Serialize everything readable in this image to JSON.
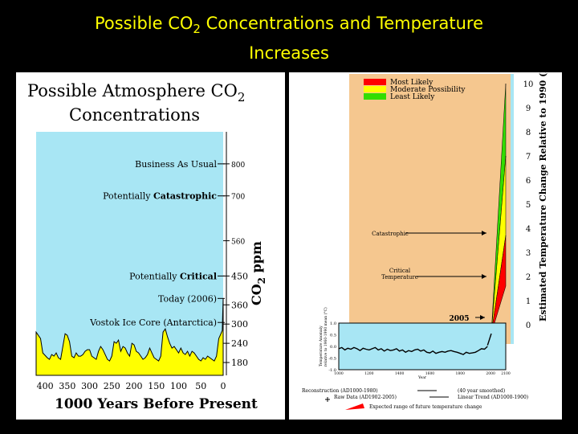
{
  "slide": {
    "title_part1": "Possible CO",
    "title_subscript": "2",
    "title_part2": " Concentrations and Temperature",
    "title_line2": "Increases"
  },
  "colors": {
    "background": "#000000",
    "title": "#ffff00",
    "sky": "#a8e6f4",
    "ice_core": "#ffff00",
    "warm_panel": "#f5c78f",
    "most_likely": "#ff0000",
    "moderate": "#ffff00",
    "least_likely": "#33dd00"
  },
  "chart_data": [
    {
      "type": "area",
      "title_line1": "Possible Atmosphere CO",
      "title_sub": "2",
      "title_line2": "Concentrations",
      "xlabel": "1000 Years Before Present",
      "ylabel": "CO2 ppm",
      "ylabel_main": "CO",
      "ylabel_sub": "2",
      "ylabel_unit": " ppm",
      "x_ticks": [
        "400",
        "350",
        "300",
        "250",
        "200",
        "150",
        "100",
        "50",
        "0"
      ],
      "y_ticks": [
        "800",
        "700",
        "560",
        "450",
        "360",
        "300",
        "240",
        "180"
      ],
      "annotations": [
        {
          "text": "Business As Usual",
          "level": 800
        },
        {
          "prefix": "Potentially ",
          "emph": "Catastrophic",
          "level": 700
        },
        {
          "prefix": "Potentially ",
          "emph": "Critical",
          "level": 450
        },
        {
          "text": "Today (2006)",
          "level": 380
        },
        {
          "text": "Vostok Ice Core (Antarctica)",
          "level": 305
        }
      ],
      "series": [
        {
          "name": "Vostok Ice Core (Antarctica)",
          "x": [
            420,
            410,
            405,
            395,
            390,
            385,
            380,
            375,
            370,
            365,
            360,
            355,
            350,
            345,
            340,
            335,
            330,
            325,
            320,
            315,
            310,
            305,
            300,
            295,
            290,
            285,
            280,
            275,
            270,
            265,
            260,
            255,
            250,
            245,
            240,
            235,
            230,
            225,
            220,
            215,
            210,
            205,
            200,
            195,
            190,
            185,
            180,
            175,
            170,
            165,
            160,
            155,
            150,
            145,
            140,
            135,
            130,
            125,
            120,
            115,
            110,
            105,
            100,
            95,
            90,
            85,
            80,
            75,
            70,
            65,
            60,
            55,
            50,
            45,
            40,
            35,
            30,
            25,
            20,
            15,
            10,
            5,
            2,
            1,
            0
          ],
          "values": [
            275,
            255,
            210,
            195,
            190,
            205,
            200,
            210,
            195,
            190,
            230,
            270,
            265,
            245,
            200,
            195,
            210,
            200,
            200,
            205,
            215,
            220,
            220,
            200,
            195,
            190,
            215,
            230,
            220,
            205,
            190,
            185,
            200,
            245,
            240,
            250,
            215,
            230,
            225,
            210,
            200,
            240,
            235,
            215,
            210,
            200,
            190,
            195,
            205,
            225,
            210,
            195,
            190,
            185,
            200,
            275,
            285,
            260,
            240,
            225,
            230,
            220,
            210,
            225,
            210,
            205,
            215,
            200,
            215,
            210,
            200,
            190,
            185,
            195,
            190,
            200,
            195,
            190,
            185,
            200,
            255,
            270,
            280,
            330,
            380
          ]
        }
      ],
      "xlim": [
        420,
        0
      ],
      "ylim": [
        140,
        900
      ]
    },
    {
      "type": "line",
      "ylabel": "Estimated Temperature Change Relative to 1990 (Deg. C)",
      "y_ticks": [
        "10",
        "9",
        "8",
        "7",
        "6",
        "5",
        "4",
        "3",
        "2",
        "1",
        "0"
      ],
      "ylim": [
        -0.8,
        10.4
      ],
      "legend": {
        "placement": "top-left",
        "entries": [
          "Most Likely",
          "Moderate Possibility",
          "Least Likely"
        ]
      },
      "annotations": [
        {
          "text": "Catastrophic",
          "level": 3.8
        },
        {
          "text": "Critical Temperature",
          "level": 2.0
        },
        {
          "text": "2005",
          "level": 0.3
        }
      ],
      "projection_bands": [
        {
          "name": "Least Likely",
          "top_2100": 10.0,
          "bottom_2100": 7.0
        },
        {
          "name": "Moderate Possibility",
          "top_2100": 7.0,
          "bottom_2100": 3.7
        },
        {
          "name": "Most Likely",
          "top_2100": 3.7,
          "bottom_2100": 1.6
        }
      ],
      "inset": {
        "ylabel_line1": "Temperature Anomaly",
        "ylabel_line2": "relative to 1960-1990 mean (°C)",
        "xlabel": "Year",
        "y_ticks": [
          "1.0",
          "0.5",
          "0.0",
          "-0.5",
          "-1.0"
        ],
        "x_ticks": [
          "1000",
          "1200",
          "1400",
          "1600",
          "1800",
          "2000",
          "2100"
        ],
        "xlim": [
          1000,
          2100
        ],
        "ylim": [
          -1.0,
          1.0
        ],
        "series": [
          {
            "name": "Reconstruction (AD1000-1980)",
            "x": [
              1000,
              1020,
              1040,
              1060,
              1080,
              1100,
              1120,
              1140,
              1160,
              1180,
              1200,
              1220,
              1240,
              1260,
              1280,
              1300,
              1320,
              1340,
              1360,
              1380,
              1400,
              1420,
              1440,
              1460,
              1480,
              1500,
              1520,
              1540,
              1560,
              1580,
              1600,
              1620,
              1640,
              1660,
              1680,
              1700,
              1720,
              1740,
              1760,
              1780,
              1800,
              1820,
              1840,
              1860,
              1880,
              1900,
              1920,
              1940,
              1960,
              1980
            ],
            "values": [
              -0.1,
              -0.05,
              -0.15,
              -0.08,
              -0.12,
              -0.05,
              -0.1,
              -0.18,
              -0.08,
              -0.12,
              -0.15,
              -0.1,
              -0.05,
              -0.15,
              -0.1,
              -0.2,
              -0.12,
              -0.18,
              -0.15,
              -0.1,
              -0.2,
              -0.15,
              -0.25,
              -0.18,
              -0.22,
              -0.15,
              -0.12,
              -0.2,
              -0.15,
              -0.25,
              -0.28,
              -0.2,
              -0.3,
              -0.25,
              -0.22,
              -0.25,
              -0.2,
              -0.18,
              -0.22,
              -0.25,
              -0.3,
              -0.35,
              -0.25,
              -0.3,
              -0.28,
              -0.25,
              -0.18,
              -0.1,
              -0.12,
              0.0
            ]
          },
          {
            "name": "Raw Data (AD1902-2005)",
            "x": [
              1980,
              1990,
              2000,
              2005
            ],
            "values": [
              0.05,
              0.25,
              0.45,
              0.55
            ]
          }
        ],
        "legend": [
          {
            "text": "Reconstruction (AD1000-1980)"
          },
          {
            "text": "(40 year smoothed)"
          },
          {
            "text": "Raw Data (AD1902-2005)"
          },
          {
            "text": "Linear Trend (AD1000-1900)"
          },
          {
            "text": "Expected range of future temperature change"
          }
        ]
      }
    }
  ]
}
